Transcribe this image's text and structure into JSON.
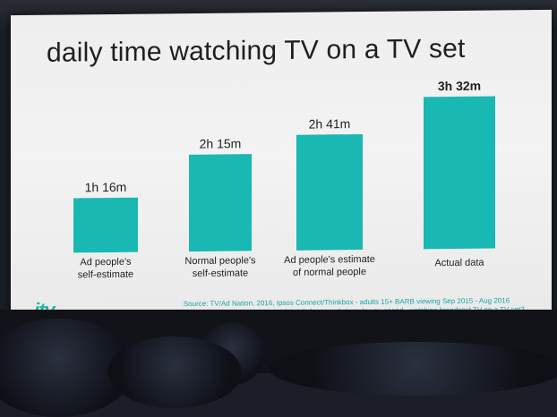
{
  "chart_data": {
    "type": "bar",
    "title": "daily time watching TV on a TV set",
    "categories": [
      [
        "Ad people's",
        "self-estimate"
      ],
      [
        "Normal people's",
        "self-estimate"
      ],
      [
        "Ad people's estimate",
        "of normal people"
      ],
      [
        "Actual data"
      ]
    ],
    "values": [
      76,
      135,
      161,
      212
    ],
    "value_labels": [
      "1h 16m",
      "2h 15m",
      "2h 41m",
      "3h 32m"
    ],
    "bold_label_index": 3,
    "ylim": [
      0,
      212
    ],
    "grid": false,
    "legend": "none",
    "bar_color": "#1ab8b3"
  },
  "brand": {
    "logo": "itv",
    "logo_color": "#17b9a6"
  },
  "footnote": {
    "source": "Source: TV/Ad Nation, 2016, Ipsos Connect/Thinkbox - adults 15+ BARB viewing Sep 2015 - Aug 2016",
    "question": "Question: 'In an average day, approximately how much time do you spend...watching broadcast TV on a TV set?"
  }
}
